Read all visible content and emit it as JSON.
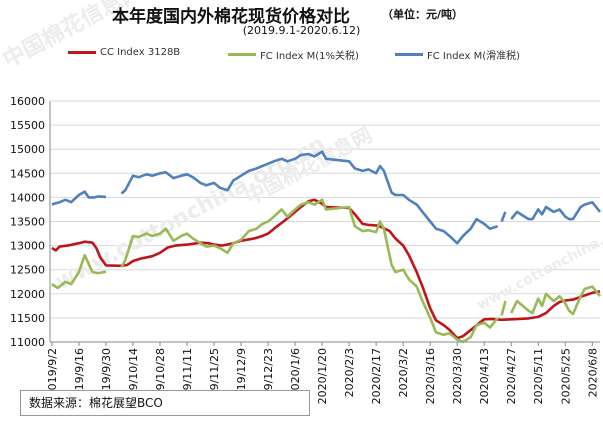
{
  "header": {
    "title": "本年度国内外棉花现货价格对比",
    "unit": "（单位：元/吨）",
    "subtitle": "(2019.9.1-2020.6.12)"
  },
  "source_note": "数据来源：棉花展望BCO",
  "watermark": {
    "cn": "中国棉花信息网",
    "url": "www.cottonchina.org.cn"
  },
  "colors": {
    "cc": "#c0141b",
    "fc1": "#98b956",
    "fc_sliding": "#4f81bd",
    "axis": "#888888",
    "grid": "#d9d9d9"
  },
  "chart_data": {
    "type": "line",
    "title": "本年度国内外棉花现货价格对比",
    "subtitle": "(2019.9.1-2020.6.12)",
    "ylim": [
      11000,
      16000
    ],
    "yticks": [
      11000,
      11500,
      12000,
      12500,
      13000,
      13500,
      14000,
      14500,
      15000,
      15500,
      16000
    ],
    "ytick_labels": [
      "11000",
      "11500",
      "12000",
      "12500",
      "13000",
      "13500",
      "14000",
      "14500",
      "15000",
      "15500",
      "16000"
    ],
    "xticks": [
      "2019/9/2",
      "2019/9/16",
      "2019/9/30",
      "2019/10/14",
      "2019/10/28",
      "2019/11/11",
      "2019/11/25",
      "2019/12/9",
      "2019/12/23",
      "2020/1/6",
      "2020/1/20",
      "2020/2/3",
      "2020/2/17",
      "2020/3/2",
      "2020/3/16",
      "2020/3/30",
      "2020/4/13",
      "2020/4/27",
      "2020/5/11",
      "2020/5/25",
      "2020/6/8"
    ],
    "x_range": [
      "2019/9/1",
      "2020/6/12"
    ],
    "grid": "horizontal",
    "legend_position": "top",
    "series": [
      {
        "name": "CC Index 3128B",
        "color": "#c0141b",
        "points": [
          [
            "2019/9/2",
            12950
          ],
          [
            "2019/9/4",
            12900
          ],
          [
            "2019/9/6",
            12980
          ],
          [
            "2019/9/10",
            13000
          ],
          [
            "2019/9/16",
            13050
          ],
          [
            "2019/9/19",
            13080
          ],
          [
            "2019/9/23",
            13060
          ],
          [
            "2019/9/25",
            12950
          ],
          [
            "2019/9/27",
            12760
          ],
          [
            "2019/9/30",
            12590
          ],
          [
            "2019/10/8",
            12580
          ],
          [
            "2019/10/11",
            12600
          ],
          [
            "2019/10/14",
            12680
          ],
          [
            "2019/10/18",
            12730
          ],
          [
            "2019/10/24",
            12780
          ],
          [
            "2019/10/28",
            12850
          ],
          [
            "2019/11/1",
            12960
          ],
          [
            "2019/11/5",
            13000
          ],
          [
            "2019/11/11",
            13020
          ],
          [
            "2019/11/18",
            13060
          ],
          [
            "2019/11/22",
            13050
          ],
          [
            "2019/11/25",
            13020
          ],
          [
            "2019/11/29",
            13000
          ],
          [
            "2019/12/4",
            13040
          ],
          [
            "2019/12/9",
            13100
          ],
          [
            "2019/12/16",
            13150
          ],
          [
            "2019/12/20",
            13200
          ],
          [
            "2019/12/23",
            13250
          ],
          [
            "2019/12/27",
            13380
          ],
          [
            "2019/12/31",
            13500
          ],
          [
            "2020/1/3",
            13600
          ],
          [
            "2020/1/6",
            13700
          ],
          [
            "2020/1/9",
            13800
          ],
          [
            "2020/1/13",
            13920
          ],
          [
            "2020/1/16",
            13950
          ],
          [
            "2020/1/20",
            13870
          ],
          [
            "2020/1/22",
            13800
          ],
          [
            "2020/2/3",
            13780
          ],
          [
            "2020/2/6",
            13650
          ],
          [
            "2020/2/10",
            13450
          ],
          [
            "2020/2/13",
            13430
          ],
          [
            "2020/2/17",
            13420
          ],
          [
            "2020/2/20",
            13380
          ],
          [
            "2020/2/24",
            13300
          ],
          [
            "2020/2/27",
            13150
          ],
          [
            "2020/3/2",
            13000
          ],
          [
            "2020/3/5",
            12800
          ],
          [
            "2020/3/9",
            12450
          ],
          [
            "2020/3/12",
            12150
          ],
          [
            "2020/3/16",
            11700
          ],
          [
            "2020/3/19",
            11450
          ],
          [
            "2020/3/23",
            11350
          ],
          [
            "2020/3/26",
            11250
          ],
          [
            "2020/3/30",
            11080
          ],
          [
            "2020/4/2",
            11120
          ],
          [
            "2020/4/7",
            11280
          ],
          [
            "2020/4/10",
            11380
          ],
          [
            "2020/4/13",
            11470
          ],
          [
            "2020/4/17",
            11480
          ],
          [
            "2020/4/22",
            11460
          ],
          [
            "2020/4/27",
            11470
          ],
          [
            "2020/5/1",
            11480
          ],
          [
            "2020/5/6",
            11490
          ],
          [
            "2020/5/11",
            11520
          ],
          [
            "2020/5/15",
            11600
          ],
          [
            "2020/5/19",
            11750
          ],
          [
            "2020/5/22",
            11830
          ],
          [
            "2020/5/25",
            11860
          ],
          [
            "2020/5/29",
            11880
          ],
          [
            "2020/6/3",
            11950
          ],
          [
            "2020/6/8",
            12020
          ],
          [
            "2020/6/12",
            12050
          ]
        ]
      },
      {
        "name": "FC Index M(1%关税)",
        "color": "#98b956",
        "points": [
          [
            "2019/9/2",
            12200
          ],
          [
            "2019/9/5",
            12120
          ],
          [
            "2019/9/9",
            12250
          ],
          [
            "2019/9/12",
            12200
          ],
          [
            "2019/9/16",
            12450
          ],
          [
            "2019/9/19",
            12800
          ],
          [
            "2019/9/23",
            12450
          ],
          [
            "2019/9/26",
            12430
          ],
          [
            "2019/9/30",
            12460
          ],
          null,
          [
            "2019/10/8",
            12550
          ],
          [
            "2019/10/10",
            12700
          ],
          [
            "2019/10/14",
            13200
          ],
          [
            "2019/10/17",
            13180
          ],
          [
            "2019/10/21",
            13250
          ],
          [
            "2019/10/24",
            13200
          ],
          [
            "2019/10/28",
            13250
          ],
          [
            "2019/10/31",
            13350
          ],
          [
            "2019/11/4",
            13100
          ],
          [
            "2019/11/8",
            13200
          ],
          [
            "2019/11/11",
            13250
          ],
          [
            "2019/11/14",
            13150
          ],
          [
            "2019/11/18",
            13050
          ],
          [
            "2019/11/21",
            12980
          ],
          [
            "2019/11/25",
            13000
          ],
          [
            "2019/11/28",
            12950
          ],
          [
            "2019/12/2",
            12850
          ],
          [
            "2019/12/5",
            13050
          ],
          [
            "2019/12/9",
            13120
          ],
          [
            "2019/12/13",
            13300
          ],
          [
            "2019/12/17",
            13350
          ],
          [
            "2019/12/20",
            13450
          ],
          [
            "2019/12/23",
            13500
          ],
          [
            "2019/12/26",
            13600
          ],
          [
            "2019/12/30",
            13750
          ],
          [
            "2020/1/2",
            13600
          ],
          [
            "2020/1/6",
            13750
          ],
          [
            "2020/1/9",
            13850
          ],
          [
            "2020/1/13",
            13900
          ],
          [
            "2020/1/16",
            13850
          ],
          [
            "2020/1/20",
            13950
          ],
          [
            "2020/1/22",
            13750
          ],
          [
            "2020/2/3",
            13800
          ],
          [
            "2020/2/6",
            13400
          ],
          [
            "2020/2/10",
            13300
          ],
          [
            "2020/2/13",
            13320
          ],
          [
            "2020/2/17",
            13280
          ],
          [
            "2020/2/19",
            13500
          ],
          [
            "2020/2/21",
            13350
          ],
          [
            "2020/2/25",
            12600
          ],
          [
            "2020/2/27",
            12450
          ],
          [
            "2020/3/2",
            12500
          ],
          [
            "2020/3/5",
            12300
          ],
          [
            "2020/3/9",
            12150
          ],
          [
            "2020/3/12",
            11850
          ],
          [
            "2020/3/16",
            11500
          ],
          [
            "2020/3/19",
            11200
          ],
          [
            "2020/3/23",
            11150
          ],
          [
            "2020/3/26",
            11180
          ],
          [
            "2020/3/30",
            11050
          ],
          [
            "2020/4/2",
            11000
          ],
          [
            "2020/4/6",
            11100
          ],
          [
            "2020/4/9",
            11350
          ],
          [
            "2020/4/13",
            11400
          ],
          [
            "2020/4/16",
            11300
          ],
          [
            "2020/4/20",
            11500
          ],
          null,
          [
            "2020/4/22",
            11550
          ],
          [
            "2020/4/24",
            11850
          ],
          null,
          [
            "2020/4/27",
            11600
          ],
          [
            "2020/4/30",
            11850
          ],
          [
            "2020/5/6",
            11650
          ],
          [
            "2020/5/8",
            11600
          ],
          [
            "2020/5/11",
            11900
          ],
          [
            "2020/5/13",
            11750
          ],
          [
            "2020/5/15",
            12000
          ],
          [
            "2020/5/19",
            11850
          ],
          [
            "2020/5/22",
            11950
          ],
          [
            "2020/5/25",
            11800
          ],
          [
            "2020/5/27",
            11650
          ],
          [
            "2020/5/29",
            11580
          ],
          [
            "2020/6/2",
            11950
          ],
          [
            "2020/6/4",
            12100
          ],
          [
            "2020/6/8",
            12150
          ],
          [
            "2020/6/10",
            12050
          ],
          [
            "2020/6/12",
            11950
          ]
        ]
      },
      {
        "name": "FC Index M(滑准税)",
        "color": "#4f81bd",
        "points": [
          [
            "2019/9/2",
            13850
          ],
          [
            "2019/9/4",
            13880
          ],
          [
            "2019/9/6",
            13900
          ],
          [
            "2019/9/9",
            13950
          ],
          [
            "2019/9/12",
            13900
          ],
          [
            "2019/9/16",
            14050
          ],
          [
            "2019/9/19",
            14120
          ],
          [
            "2019/9/21",
            14000
          ],
          [
            "2019/9/24",
            14000
          ],
          [
            "2019/9/26",
            14020
          ],
          [
            "2019/9/30",
            14010
          ],
          null,
          [
            "2019/10/8",
            14080
          ],
          [
            "2019/10/10",
            14150
          ],
          [
            "2019/10/14",
            14450
          ],
          [
            "2019/10/17",
            14420
          ],
          [
            "2019/10/21",
            14480
          ],
          [
            "2019/10/24",
            14450
          ],
          [
            "2019/10/28",
            14500
          ],
          [
            "2019/10/31",
            14520
          ],
          [
            "2019/11/4",
            14400
          ],
          [
            "2019/11/8",
            14450
          ],
          [
            "2019/11/11",
            14480
          ],
          [
            "2019/11/14",
            14420
          ],
          [
            "2019/11/18",
            14300
          ],
          [
            "2019/11/21",
            14250
          ],
          [
            "2019/11/25",
            14300
          ],
          [
            "2019/11/28",
            14200
          ],
          [
            "2019/12/2",
            14150
          ],
          [
            "2019/12/5",
            14350
          ],
          [
            "2019/12/9",
            14450
          ],
          [
            "2019/12/13",
            14550
          ],
          [
            "2019/12/17",
            14600
          ],
          [
            "2019/12/20",
            14650
          ],
          [
            "2019/12/23",
            14700
          ],
          [
            "2019/12/26",
            14750
          ],
          [
            "2019/12/30",
            14800
          ],
          [
            "2020/1/2",
            14750
          ],
          [
            "2020/1/6",
            14800
          ],
          [
            "2020/1/9",
            14880
          ],
          [
            "2020/1/13",
            14900
          ],
          [
            "2020/1/16",
            14850
          ],
          [
            "2020/1/20",
            14950
          ],
          [
            "2020/1/22",
            14800
          ],
          [
            "2020/2/3",
            14750
          ],
          [
            "2020/2/6",
            14600
          ],
          [
            "2020/2/10",
            14550
          ],
          [
            "2020/2/13",
            14580
          ],
          [
            "2020/2/17",
            14500
          ],
          [
            "2020/2/19",
            14650
          ],
          [
            "2020/2/21",
            14550
          ],
          [
            "2020/2/25",
            14100
          ],
          [
            "2020/2/27",
            14050
          ],
          [
            "2020/3/2",
            14050
          ],
          [
            "2020/3/5",
            13950
          ],
          [
            "2020/3/9",
            13850
          ],
          [
            "2020/3/12",
            13700
          ],
          [
            "2020/3/16",
            13500
          ],
          [
            "2020/3/19",
            13350
          ],
          [
            "2020/3/23",
            13300
          ],
          [
            "2020/3/26",
            13200
          ],
          [
            "2020/3/30",
            13050
          ],
          [
            "2020/4/2",
            13200
          ],
          [
            "2020/4/6",
            13350
          ],
          [
            "2020/4/9",
            13550
          ],
          [
            "2020/4/13",
            13450
          ],
          [
            "2020/4/16",
            13350
          ],
          [
            "2020/4/20",
            13400
          ],
          null,
          [
            "2020/4/22",
            13500
          ],
          [
            "2020/4/24",
            13700
          ],
          null,
          [
            "2020/4/27",
            13550
          ],
          [
            "2020/4/30",
            13700
          ],
          [
            "2020/5/6",
            13550
          ],
          [
            "2020/5/8",
            13550
          ],
          [
            "2020/5/11",
            13750
          ],
          [
            "2020/5/13",
            13650
          ],
          [
            "2020/5/15",
            13800
          ],
          [
            "2020/5/19",
            13700
          ],
          [
            "2020/5/22",
            13750
          ],
          [
            "2020/5/25",
            13600
          ],
          [
            "2020/5/27",
            13550
          ],
          [
            "2020/5/29",
            13550
          ],
          [
            "2020/6/2",
            13800
          ],
          [
            "2020/6/4",
            13850
          ],
          [
            "2020/6/8",
            13900
          ],
          [
            "2020/6/10",
            13800
          ],
          [
            "2020/6/12",
            13700
          ]
        ]
      }
    ]
  }
}
